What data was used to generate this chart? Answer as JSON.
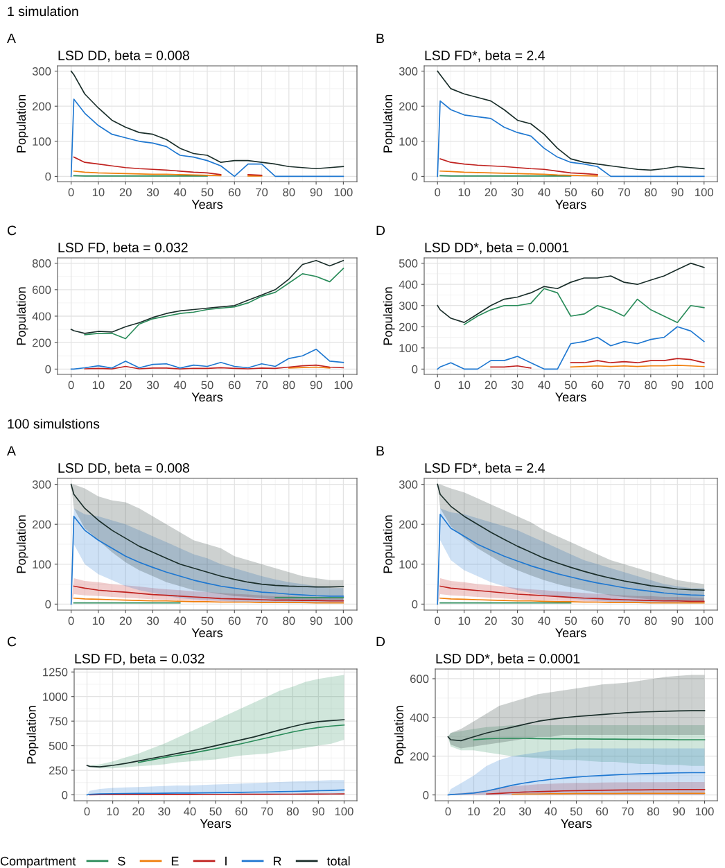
{
  "chart_data": [
    {
      "type": "line",
      "title": "LSD DD, beta = 0.008",
      "xlabel": "Years",
      "ylabel": "Population",
      "annotations": [
        "1 simulation",
        "A"
      ],
      "grid": true,
      "xlim": [
        -5,
        105
      ],
      "xticks": [
        0,
        10,
        20,
        30,
        40,
        50,
        60,
        70,
        80,
        90,
        100
      ],
      "ylim": [
        -15,
        315
      ],
      "yticks": [
        0,
        100,
        200,
        300
      ],
      "x": [
        0,
        1,
        5,
        10,
        15,
        20,
        25,
        30,
        35,
        40,
        45,
        50,
        55,
        60,
        65,
        70,
        75,
        80,
        85,
        90,
        95,
        100
      ],
      "series": [
        {
          "color": "#2a8c5a",
          "values": [
            null,
            2,
            1,
            1,
            1,
            1,
            1,
            1,
            1,
            1,
            1,
            1,
            null,
            null,
            null,
            null,
            null,
            null,
            null,
            null,
            null,
            null
          ]
        },
        {
          "color": "#f07f0c",
          "values": [
            null,
            15,
            12,
            10,
            9,
            8,
            7,
            6,
            6,
            5,
            4,
            3,
            2,
            null,
            1,
            1,
            null,
            null,
            null,
            null,
            null,
            null
          ]
        },
        {
          "color": "#c0221f",
          "values": [
            null,
            55,
            40,
            35,
            30,
            25,
            22,
            20,
            18,
            15,
            12,
            10,
            5,
            null,
            5,
            3,
            null,
            null,
            null,
            null,
            null,
            null
          ]
        },
        {
          "color": "#1f78d1",
          "values": [
            0,
            220,
            180,
            145,
            120,
            110,
            100,
            95,
            85,
            60,
            55,
            45,
            30,
            0,
            35,
            35,
            0,
            0,
            0,
            0,
            0,
            0
          ]
        },
        {
          "color": "#1a2e2a",
          "values": [
            300,
            290,
            235,
            195,
            160,
            140,
            125,
            120,
            105,
            80,
            65,
            60,
            40,
            45,
            45,
            40,
            35,
            28,
            25,
            22,
            25,
            28
          ]
        }
      ]
    },
    {
      "type": "line",
      "title": "LSD FD*, beta = 2.4",
      "xlabel": "Years",
      "ylabel": "Population",
      "annotations": [
        "B"
      ],
      "grid": true,
      "xlim": [
        -5,
        105
      ],
      "xticks": [
        0,
        10,
        20,
        30,
        40,
        50,
        60,
        70,
        80,
        90,
        100
      ],
      "ylim": [
        -15,
        315
      ],
      "yticks": [
        0,
        100,
        200,
        300
      ],
      "x": [
        0,
        1,
        5,
        10,
        15,
        20,
        25,
        30,
        35,
        40,
        45,
        50,
        55,
        60,
        65,
        70,
        75,
        80,
        85,
        90,
        95,
        100
      ],
      "series": [
        {
          "color": "#2a8c5a",
          "values": [
            null,
            2,
            1,
            1,
            1,
            1,
            1,
            1,
            1,
            1,
            1,
            1,
            null,
            null,
            null,
            null,
            null,
            null,
            null,
            null,
            null,
            null
          ]
        },
        {
          "color": "#f07f0c",
          "values": [
            null,
            15,
            14,
            12,
            11,
            10,
            9,
            8,
            7,
            6,
            4,
            3,
            2,
            1,
            null,
            null,
            null,
            null,
            null,
            null,
            null,
            null
          ]
        },
        {
          "color": "#c0221f",
          "values": [
            null,
            50,
            40,
            35,
            32,
            30,
            28,
            25,
            22,
            20,
            15,
            10,
            8,
            5,
            null,
            null,
            null,
            null,
            null,
            null,
            null,
            null
          ]
        },
        {
          "color": "#1f78d1",
          "values": [
            0,
            215,
            190,
            175,
            170,
            165,
            140,
            125,
            115,
            80,
            55,
            40,
            35,
            28,
            0,
            0,
            0,
            0,
            0,
            0,
            0,
            0
          ]
        },
        {
          "color": "#1a2e2a",
          "values": [
            300,
            290,
            250,
            235,
            225,
            215,
            190,
            160,
            150,
            120,
            80,
            50,
            40,
            35,
            30,
            25,
            20,
            18,
            22,
            28,
            25,
            22
          ]
        }
      ]
    },
    {
      "type": "line",
      "title": "LSD FD, beta = 0.032",
      "xlabel": "Years",
      "ylabel": "Population",
      "annotations": [
        "C"
      ],
      "grid": true,
      "xlim": [
        -5,
        105
      ],
      "xticks": [
        0,
        10,
        20,
        30,
        40,
        50,
        60,
        70,
        80,
        90,
        100
      ],
      "ylim": [
        -40,
        840
      ],
      "yticks": [
        0,
        200,
        400,
        600,
        800
      ],
      "x": [
        0,
        1,
        5,
        10,
        15,
        20,
        25,
        30,
        35,
        40,
        45,
        50,
        55,
        60,
        65,
        70,
        75,
        80,
        85,
        90,
        95,
        100
      ],
      "series": [
        {
          "color": "#2a8c5a",
          "values": [
            null,
            null,
            260,
            270,
            270,
            230,
            340,
            380,
            400,
            420,
            430,
            450,
            460,
            470,
            500,
            550,
            580,
            650,
            720,
            700,
            660,
            760
          ]
        },
        {
          "color": "#f07f0c",
          "values": [
            null,
            null,
            null,
            null,
            null,
            null,
            null,
            null,
            null,
            null,
            null,
            null,
            null,
            null,
            null,
            null,
            null,
            8,
            12,
            15,
            8,
            null
          ]
        },
        {
          "color": "#c0221f",
          "values": [
            null,
            null,
            2,
            5,
            1,
            20,
            2,
            8,
            8,
            1,
            6,
            5,
            10,
            5,
            2,
            8,
            5,
            15,
            25,
            30,
            15,
            10
          ]
        },
        {
          "color": "#1f78d1",
          "values": [
            0,
            0,
            10,
            25,
            8,
            60,
            10,
            35,
            40,
            8,
            30,
            20,
            50,
            20,
            10,
            40,
            20,
            80,
            100,
            150,
            60,
            50
          ]
        },
        {
          "color": "#1a2e2a",
          "values": [
            300,
            290,
            270,
            285,
            280,
            320,
            350,
            390,
            420,
            440,
            450,
            460,
            470,
            480,
            520,
            560,
            600,
            680,
            790,
            820,
            780,
            820
          ]
        }
      ]
    },
    {
      "type": "line",
      "title": "LSD DD*, beta = 0.0001",
      "xlabel": "Years",
      "ylabel": "Population",
      "annotations": [
        "D"
      ],
      "grid": true,
      "xlim": [
        -5,
        105
      ],
      "xticks": [
        0,
        10,
        20,
        30,
        40,
        50,
        60,
        70,
        80,
        90,
        100
      ],
      "ylim": [
        -25,
        525
      ],
      "yticks": [
        0,
        100,
        200,
        300,
        400,
        500
      ],
      "x": [
        0,
        1,
        5,
        10,
        15,
        20,
        25,
        30,
        35,
        40,
        45,
        50,
        55,
        60,
        65,
        70,
        75,
        80,
        85,
        90,
        95,
        100
      ],
      "series": [
        {
          "color": "#2a8c5a",
          "values": [
            null,
            null,
            null,
            210,
            250,
            280,
            300,
            300,
            310,
            380,
            360,
            250,
            260,
            300,
            280,
            250,
            330,
            280,
            250,
            220,
            300,
            290
          ]
        },
        {
          "color": "#f07f0c",
          "values": [
            null,
            null,
            null,
            null,
            null,
            null,
            null,
            null,
            null,
            null,
            null,
            10,
            12,
            15,
            12,
            15,
            12,
            15,
            15,
            18,
            15,
            12
          ]
        },
        {
          "color": "#c0221f",
          "values": [
            null,
            null,
            null,
            null,
            null,
            10,
            10,
            15,
            5,
            null,
            null,
            30,
            30,
            40,
            30,
            35,
            30,
            40,
            40,
            50,
            45,
            30
          ]
        },
        {
          "color": "#1f78d1",
          "values": [
            0,
            10,
            30,
            0,
            0,
            40,
            40,
            60,
            30,
            0,
            0,
            120,
            130,
            150,
            110,
            130,
            120,
            140,
            150,
            200,
            180,
            130
          ]
        },
        {
          "color": "#1a2e2a",
          "values": [
            300,
            280,
            240,
            220,
            260,
            300,
            330,
            340,
            360,
            390,
            380,
            410,
            430,
            430,
            440,
            410,
            400,
            420,
            440,
            470,
            500,
            480
          ]
        }
      ]
    },
    {
      "type": "line",
      "title": "LSD DD, beta = 0.008",
      "xlabel": "Years",
      "ylabel": "Population",
      "annotations": [
        "100 simulstions",
        "A"
      ],
      "grid": true,
      "xlim": [
        -5,
        105
      ],
      "xticks": [
        0,
        10,
        20,
        30,
        40,
        50,
        60,
        70,
        80,
        90,
        100
      ],
      "ylim": [
        -15,
        315
      ],
      "yticks": [
        0,
        100,
        200,
        300
      ],
      "x": [
        0,
        1,
        5,
        10,
        15,
        20,
        25,
        30,
        35,
        40,
        45,
        50,
        55,
        60,
        65,
        70,
        75,
        80,
        85,
        90,
        95,
        100
      ],
      "series": [
        {
          "color": "#2a8c5a",
          "values": [
            null,
            3,
            3,
            3,
            3,
            3,
            3,
            3,
            3,
            3,
            null,
            null,
            null,
            null,
            null,
            null,
            16,
            16,
            16,
            16,
            16,
            16
          ]
        },
        {
          "color": "#f07f0c",
          "values": [
            null,
            15,
            13,
            12,
            11,
            10,
            9,
            8,
            8,
            7,
            6,
            6,
            5,
            5,
            5,
            4,
            4,
            4,
            4,
            3,
            3,
            3
          ]
        },
        {
          "color": "#c0221f",
          "values": [
            null,
            45,
            40,
            35,
            32,
            30,
            27,
            24,
            22,
            20,
            18,
            16,
            14,
            13,
            12,
            11,
            10,
            10,
            9,
            9,
            8,
            8
          ],
          "lower": [
            0,
            25,
            22,
            20,
            18,
            16,
            14,
            12,
            10,
            9,
            8,
            7,
            6,
            5,
            5,
            4,
            4,
            3,
            3,
            3,
            3,
            3
          ],
          "upper": [
            0,
            65,
            58,
            55,
            50,
            47,
            44,
            40,
            37,
            35,
            32,
            30,
            28,
            26,
            24,
            22,
            20,
            20,
            18,
            18,
            17,
            16
          ]
        },
        {
          "color": "#1f78d1",
          "values": [
            0,
            220,
            185,
            160,
            140,
            120,
            105,
            92,
            80,
            70,
            60,
            52,
            45,
            40,
            35,
            30,
            28,
            25,
            23,
            21,
            20,
            20
          ],
          "lower": [
            0,
            150,
            100,
            75,
            60,
            45,
            35,
            28,
            20,
            15,
            12,
            10,
            8,
            6,
            5,
            4,
            3,
            2,
            2,
            2,
            2,
            2
          ],
          "upper": [
            0,
            240,
            225,
            220,
            210,
            200,
            185,
            170,
            155,
            140,
            125,
            115,
            100,
            90,
            80,
            70,
            62,
            55,
            50,
            45,
            40,
            40
          ]
        },
        {
          "color": "#1a2e2a",
          "values": [
            300,
            275,
            240,
            210,
            185,
            165,
            145,
            130,
            115,
            100,
            90,
            80,
            70,
            62,
            55,
            50,
            47,
            45,
            44,
            43,
            43,
            44
          ],
          "lower": [
            300,
            240,
            190,
            160,
            130,
            105,
            85,
            70,
            55,
            45,
            35,
            30,
            25,
            20,
            18,
            15,
            12,
            10,
            10,
            10,
            10,
            10
          ],
          "upper": [
            300,
            300,
            290,
            270,
            260,
            255,
            240,
            220,
            200,
            180,
            160,
            150,
            140,
            120,
            110,
            100,
            90,
            80,
            70,
            65,
            60,
            60
          ]
        }
      ]
    },
    {
      "type": "line",
      "title": "LSD FD*, beta = 2.4",
      "xlabel": "Years",
      "ylabel": "Population",
      "annotations": [
        "B"
      ],
      "grid": true,
      "xlim": [
        -5,
        105
      ],
      "xticks": [
        0,
        10,
        20,
        30,
        40,
        50,
        60,
        70,
        80,
        90,
        100
      ],
      "ylim": [
        -15,
        315
      ],
      "yticks": [
        0,
        100,
        200,
        300
      ],
      "x": [
        0,
        1,
        5,
        10,
        15,
        20,
        25,
        30,
        35,
        40,
        45,
        50,
        55,
        60,
        65,
        70,
        75,
        80,
        85,
        90,
        95,
        100
      ],
      "series": [
        {
          "color": "#2a8c5a",
          "values": [
            null,
            3,
            3,
            3,
            3,
            3,
            3,
            3,
            3,
            3,
            3,
            3,
            null,
            null,
            null,
            null,
            null,
            null,
            null,
            null,
            null,
            null
          ]
        },
        {
          "color": "#f07f0c",
          "values": [
            null,
            15,
            13,
            12,
            11,
            10,
            9,
            8,
            8,
            7,
            6,
            6,
            5,
            5,
            4,
            4,
            4,
            3,
            3,
            3,
            3,
            3
          ]
        },
        {
          "color": "#c0221f",
          "values": [
            null,
            45,
            40,
            37,
            34,
            31,
            28,
            25,
            23,
            21,
            19,
            17,
            15,
            14,
            12,
            11,
            10,
            9,
            8,
            8,
            7,
            7
          ],
          "lower": [
            0,
            25,
            22,
            20,
            18,
            16,
            14,
            12,
            10,
            9,
            8,
            7,
            6,
            5,
            5,
            4,
            4,
            3,
            3,
            3,
            3,
            3
          ],
          "upper": [
            0,
            65,
            58,
            55,
            50,
            47,
            44,
            40,
            37,
            35,
            32,
            30,
            28,
            26,
            24,
            22,
            20,
            20,
            18,
            18,
            17,
            16
          ]
        },
        {
          "color": "#1f78d1",
          "values": [
            0,
            225,
            190,
            170,
            150,
            135,
            120,
            108,
            96,
            86,
            76,
            68,
            60,
            53,
            47,
            41,
            36,
            32,
            28,
            25,
            23,
            22
          ],
          "lower": [
            0,
            160,
            110,
            85,
            70,
            55,
            45,
            35,
            28,
            22,
            18,
            14,
            10,
            8,
            6,
            5,
            4,
            3,
            2,
            2,
            2,
            2
          ],
          "upper": [
            0,
            240,
            230,
            225,
            215,
            205,
            195,
            185,
            170,
            155,
            140,
            125,
            110,
            100,
            90,
            80,
            70,
            60,
            50,
            45,
            40,
            40
          ]
        },
        {
          "color": "#1a2e2a",
          "values": [
            300,
            275,
            245,
            220,
            200,
            180,
            162,
            145,
            130,
            115,
            103,
            92,
            82,
            73,
            65,
            58,
            52,
            46,
            42,
            38,
            36,
            35
          ],
          "lower": [
            300,
            240,
            195,
            165,
            140,
            120,
            100,
            85,
            72,
            60,
            50,
            42,
            35,
            28,
            22,
            18,
            15,
            12,
            10,
            8,
            8,
            8
          ],
          "upper": [
            300,
            300,
            290,
            280,
            265,
            250,
            235,
            220,
            205,
            185,
            170,
            155,
            140,
            125,
            110,
            100,
            90,
            80,
            70,
            60,
            55,
            50
          ]
        }
      ]
    },
    {
      "type": "line",
      "title": "LSD FD, beta = 0.032",
      "xlabel": "Years",
      "ylabel": "Population",
      "annotations": [
        "C"
      ],
      "grid": true,
      "xlim": [
        -5,
        105
      ],
      "xticks": [
        0,
        10,
        20,
        30,
        40,
        50,
        60,
        70,
        80,
        90,
        100
      ],
      "ylim": [
        -60,
        1280
      ],
      "yticks": [
        0,
        250,
        500,
        750,
        1000,
        1250
      ],
      "x": [
        0,
        1,
        5,
        10,
        15,
        20,
        25,
        30,
        35,
        40,
        45,
        50,
        55,
        60,
        65,
        70,
        75,
        80,
        85,
        90,
        95,
        100
      ],
      "series": [
        {
          "color": "#2a8c5a",
          "values": [
            null,
            null,
            null,
            null,
            null,
            330,
            355,
            380,
            400,
            420,
            445,
            470,
            495,
            520,
            550,
            580,
            610,
            640,
            665,
            685,
            700,
            710
          ],
          "lower": [
            300,
            280,
            270,
            270,
            280,
            290,
            300,
            310,
            330,
            340,
            350,
            360,
            380,
            400,
            410,
            420,
            440,
            460,
            480,
            500,
            520,
            560
          ],
          "upper": [
            300,
            300,
            310,
            340,
            380,
            420,
            470,
            520,
            580,
            640,
            700,
            760,
            820,
            880,
            940,
            1000,
            1060,
            1100,
            1150,
            1180,
            1200,
            1220
          ]
        },
        {
          "color": "#c0221f",
          "values": [
            null,
            1,
            2,
            3,
            3,
            3,
            4,
            4,
            4,
            4,
            5,
            5,
            5,
            6,
            6,
            6,
            7,
            7,
            8,
            8,
            9,
            10
          ]
        },
        {
          "color": "#1f78d1",
          "values": [
            0,
            5,
            10,
            12,
            14,
            15,
            16,
            17,
            18,
            19,
            20,
            22,
            24,
            26,
            28,
            30,
            32,
            35,
            38,
            42,
            45,
            50
          ],
          "lower": [
            0,
            0,
            0,
            0,
            0,
            0,
            0,
            0,
            0,
            0,
            0,
            0,
            0,
            0,
            0,
            0,
            0,
            0,
            0,
            0,
            0,
            0
          ],
          "upper": [
            0,
            40,
            60,
            70,
            75,
            80,
            85,
            90,
            95,
            95,
            100,
            105,
            110,
            115,
            120,
            125,
            130,
            135,
            140,
            145,
            150,
            150
          ]
        },
        {
          "color": "#1a2e2a",
          "values": [
            300,
            290,
            285,
            300,
            320,
            345,
            370,
            395,
            420,
            445,
            470,
            500,
            530,
            560,
            590,
            625,
            660,
            695,
            725,
            745,
            755,
            765
          ]
        }
      ]
    },
    {
      "type": "line",
      "title": "LSD DD*, beta = 0.0001",
      "xlabel": "Years",
      "ylabel": "Population",
      "annotations": [
        "D"
      ],
      "grid": true,
      "legend": "bottom",
      "legend_title": "Compartment",
      "xlim": [
        -5,
        105
      ],
      "xticks": [
        0,
        10,
        20,
        30,
        40,
        50,
        60,
        70,
        80,
        90,
        100
      ],
      "ylim": [
        -30,
        650
      ],
      "yticks": [
        0,
        200,
        400,
        600
      ],
      "x": [
        0,
        1,
        5,
        10,
        15,
        20,
        25,
        30,
        35,
        40,
        45,
        50,
        55,
        60,
        65,
        70,
        75,
        80,
        85,
        90,
        95,
        100
      ],
      "series": [
        {
          "name": "S",
          "color": "#2a8c5a",
          "values": [
            null,
            null,
            null,
            285,
            290,
            292,
            293,
            292,
            291,
            290,
            290,
            289,
            289,
            288,
            288,
            287,
            287,
            286,
            286,
            285,
            285,
            285
          ],
          "lower": [
            300,
            250,
            230,
            230,
            220,
            210,
            200,
            195,
            190,
            185,
            180,
            180,
            175,
            170,
            170,
            165,
            160,
            160,
            155,
            155,
            150,
            150
          ],
          "upper": [
            300,
            320,
            330,
            340,
            350,
            355,
            360,
            360,
            360,
            360,
            360,
            360,
            360,
            360,
            360,
            360,
            360,
            360,
            360,
            360,
            360,
            360
          ]
        },
        {
          "name": "E",
          "color": "#f07f0c",
          "values": [
            null,
            null,
            null,
            null,
            null,
            null,
            4,
            5,
            5,
            6,
            6,
            7,
            7,
            7,
            7,
            8,
            8,
            8,
            8,
            8,
            8,
            8
          ]
        },
        {
          "name": "I",
          "color": "#c0221f",
          "values": [
            null,
            null,
            null,
            null,
            5,
            8,
            12,
            15,
            17,
            19,
            21,
            22,
            23,
            24,
            25,
            26,
            26,
            27,
            27,
            28,
            28,
            28
          ],
          "lower": [
            0,
            0,
            0,
            0,
            0,
            0,
            0,
            0,
            0,
            0,
            0,
            0,
            0,
            0,
            0,
            0,
            0,
            0,
            0,
            0,
            0,
            0
          ],
          "upper": [
            0,
            5,
            10,
            15,
            25,
            35,
            45,
            50,
            55,
            58,
            60,
            62,
            62,
            64,
            65,
            65,
            66,
            66,
            66,
            67,
            67,
            67
          ]
        },
        {
          "name": "R",
          "color": "#1f78d1",
          "values": [
            0,
            2,
            5,
            10,
            20,
            35,
            50,
            62,
            72,
            80,
            87,
            92,
            97,
            100,
            104,
            107,
            109,
            111,
            113,
            114,
            115,
            115
          ],
          "lower": [
            0,
            0,
            0,
            0,
            0,
            0,
            0,
            0,
            0,
            0,
            0,
            0,
            0,
            0,
            0,
            0,
            0,
            0,
            0,
            0,
            0,
            0
          ],
          "upper": [
            0,
            30,
            60,
            100,
            150,
            180,
            200,
            210,
            220,
            230,
            230,
            240,
            240,
            240,
            240,
            240,
            240,
            240,
            240,
            240,
            240,
            240
          ]
        },
        {
          "name": "total",
          "color": "#1a2e2a",
          "values": [
            300,
            285,
            280,
            300,
            320,
            335,
            350,
            365,
            380,
            390,
            398,
            405,
            410,
            415,
            420,
            425,
            428,
            430,
            432,
            434,
            435,
            435
          ],
          "lower": [
            300,
            260,
            240,
            250,
            260,
            270,
            280,
            290,
            300,
            300,
            310,
            310,
            310,
            310,
            310,
            310,
            310,
            310,
            310,
            310,
            310,
            310
          ],
          "upper": [
            300,
            320,
            340,
            380,
            420,
            460,
            480,
            500,
            520,
            530,
            540,
            550,
            560,
            570,
            575,
            580,
            590,
            600,
            610,
            615,
            620,
            620
          ]
        }
      ]
    }
  ]
}
